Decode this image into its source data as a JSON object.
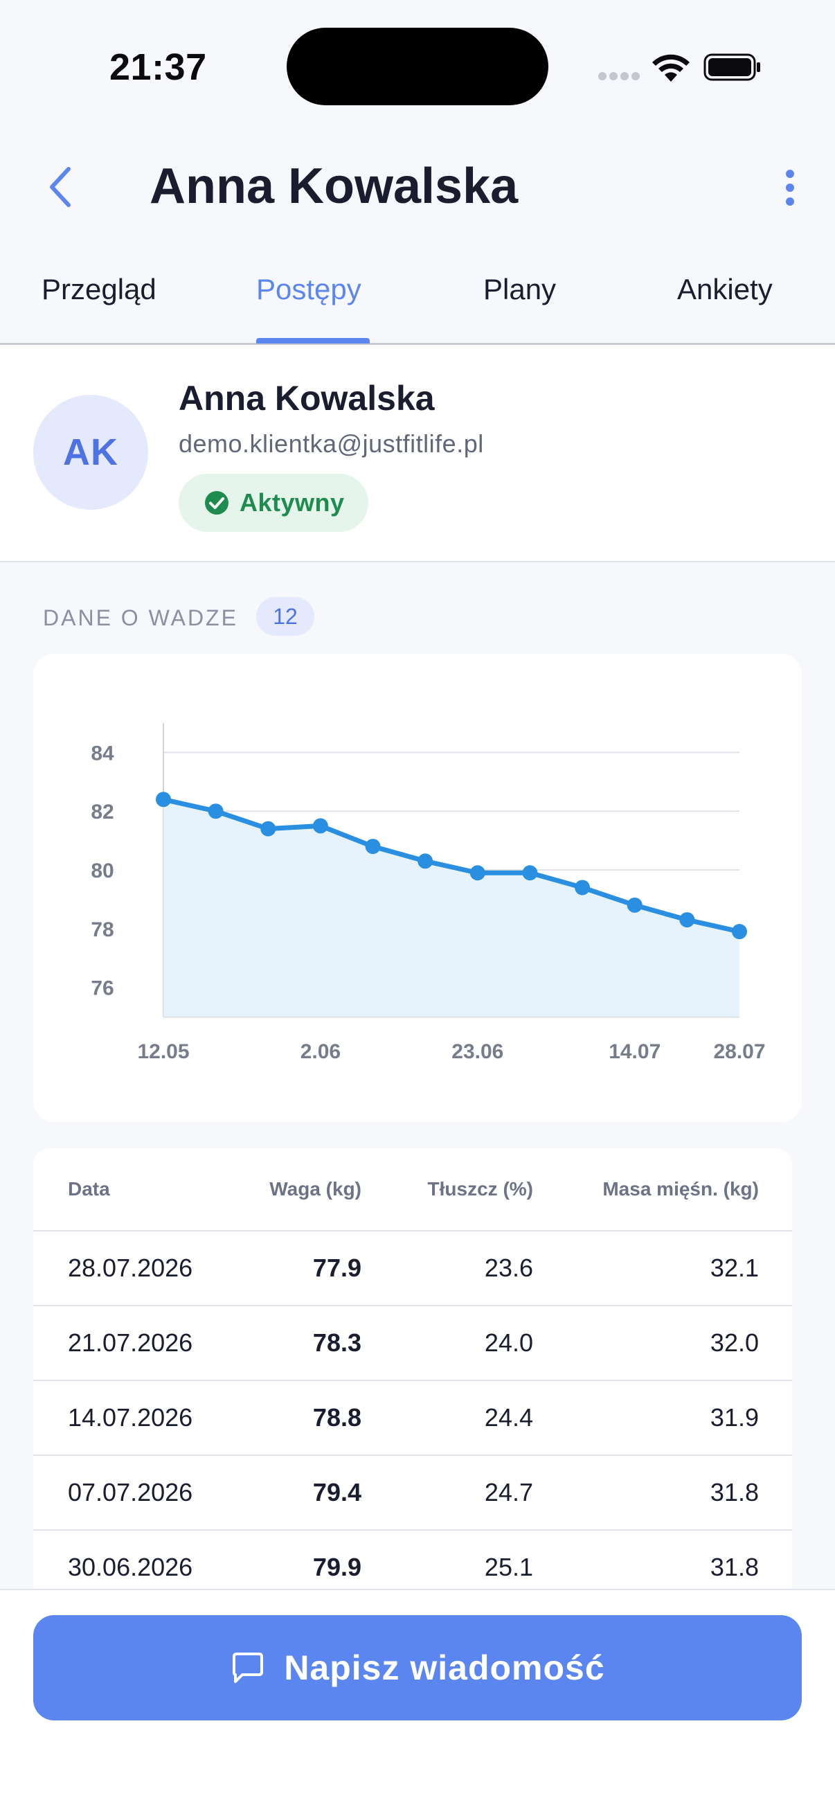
{
  "status_bar": {
    "time": "21:37"
  },
  "header": {
    "title": "Anna Kowalska"
  },
  "tabs": [
    {
      "label": "Przegląd",
      "active": false
    },
    {
      "label": "Postępy",
      "active": true
    },
    {
      "label": "Plany",
      "active": false
    },
    {
      "label": "Ankiety",
      "active": false
    }
  ],
  "profile": {
    "initials": "AK",
    "name": "Anna Kowalska",
    "email": "demo.klientka@justfitlife.pl",
    "status": "Aktywny"
  },
  "weight_section": {
    "title": "DANE O WADZE",
    "count": "12"
  },
  "chart_data": {
    "type": "area",
    "x": [
      "12.05",
      "19.05",
      "26.05",
      "2.06",
      "9.06",
      "16.06",
      "23.06",
      "30.06",
      "7.07",
      "14.07",
      "21.07",
      "28.07"
    ],
    "x_tick_labels": [
      "12.05",
      "2.06",
      "23.06",
      "14.07",
      "28.07"
    ],
    "y_ticks": [
      84,
      82,
      80,
      78,
      76
    ],
    "ylim": [
      75,
      85
    ],
    "series": [
      {
        "values": [
          82.4,
          82.0,
          81.4,
          81.5,
          80.8,
          80.3,
          79.9,
          79.9,
          79.4,
          78.8,
          78.3,
          77.9
        ]
      }
    ],
    "line_color": "#2a8fe0",
    "fill_color": "#e6f3fd",
    "grid": true
  },
  "weight_table": {
    "headers": {
      "date": "Data",
      "weight": "Waga (kg)",
      "fat": "Tłuszcz (%)",
      "muscle": "Masa mięśn. (kg)"
    },
    "rows": [
      {
        "date": "28.07.2026",
        "weight": "77.9",
        "fat": "23.6",
        "muscle": "32.1"
      },
      {
        "date": "21.07.2026",
        "weight": "78.3",
        "fat": "24.0",
        "muscle": "32.0"
      },
      {
        "date": "14.07.2026",
        "weight": "78.8",
        "fat": "24.4",
        "muscle": "31.9"
      },
      {
        "date": "07.07.2026",
        "weight": "79.4",
        "fat": "24.7",
        "muscle": "31.8"
      },
      {
        "date": "30.06.2026",
        "weight": "79.9",
        "fat": "25.1",
        "muscle": "31.8"
      }
    ]
  },
  "action": {
    "message_label": "Napisz wiadomość"
  },
  "colors": {
    "accent": "#5b86f0",
    "success": "#1e8b4f",
    "success_bg": "#e6f5ec"
  }
}
